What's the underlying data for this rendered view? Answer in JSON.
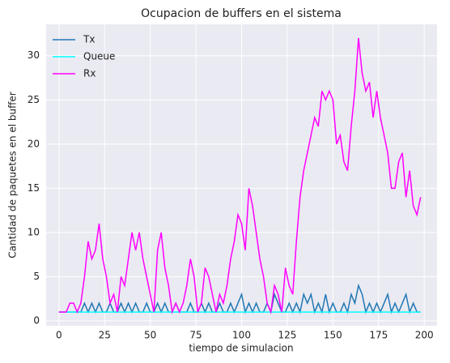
{
  "chart_data": {
    "type": "line",
    "title": "Ocupacion de buffers en el sistema",
    "xlabel": "tiempo de simulacion",
    "ylabel": "Cantidad de paquetes en el buffer",
    "x": [
      0,
      2,
      4,
      6,
      8,
      10,
      12,
      14,
      16,
      18,
      20,
      22,
      24,
      26,
      28,
      30,
      32,
      34,
      36,
      38,
      40,
      42,
      44,
      46,
      48,
      50,
      52,
      54,
      56,
      58,
      60,
      62,
      64,
      66,
      68,
      70,
      72,
      74,
      76,
      78,
      80,
      82,
      84,
      86,
      88,
      90,
      92,
      94,
      96,
      98,
      100,
      102,
      104,
      106,
      108,
      110,
      112,
      114,
      116,
      118,
      120,
      122,
      124,
      126,
      128,
      130,
      132,
      134,
      136,
      138,
      140,
      142,
      144,
      146,
      148,
      150,
      152,
      154,
      156,
      158,
      160,
      162,
      164,
      166,
      168,
      170,
      172,
      174,
      176,
      178,
      180,
      182,
      184,
      186,
      188,
      190,
      192,
      194,
      196,
      198
    ],
    "series": [
      {
        "name": "Tx",
        "color": "#1f77b4",
        "values": [
          1,
          1,
          1,
          1,
          1,
          1,
          1,
          2,
          1,
          2,
          1,
          2,
          1,
          1,
          2,
          1,
          1,
          2,
          1,
          2,
          1,
          2,
          1,
          1,
          2,
          1,
          1,
          2,
          1,
          2,
          1,
          1,
          2,
          1,
          1,
          1,
          2,
          1,
          1,
          2,
          1,
          2,
          1,
          1,
          2,
          1,
          1,
          2,
          1,
          2,
          3,
          1,
          2,
          1,
          2,
          1,
          1,
          2,
          1,
          3,
          2,
          1,
          1,
          2,
          1,
          2,
          1,
          3,
          2,
          3,
          1,
          2,
          1,
          3,
          1,
          2,
          1,
          1,
          2,
          1,
          3,
          2,
          4,
          3,
          1,
          2,
          1,
          2,
          1,
          2,
          3,
          1,
          2,
          1,
          2,
          3,
          1,
          2,
          1,
          1
        ]
      },
      {
        "name": "Queue",
        "color": "#00ffff",
        "values": [
          1,
          1,
          1,
          1,
          1,
          1,
          1,
          1,
          1,
          1,
          1,
          1,
          1,
          1,
          1,
          1,
          1,
          1,
          1,
          1,
          1,
          1,
          1,
          1,
          1,
          1,
          1,
          1,
          1,
          1,
          1,
          1,
          1,
          1,
          1,
          1,
          1,
          1,
          1,
          1,
          1,
          1,
          1,
          1,
          1,
          1,
          1,
          1,
          1,
          1,
          1,
          1,
          1,
          1,
          1,
          1,
          1,
          1,
          1,
          1,
          1,
          1,
          1,
          1,
          1,
          1,
          1,
          1,
          1,
          1,
          1,
          1,
          1,
          1,
          1,
          1,
          1,
          1,
          1,
          1,
          1,
          1,
          1,
          1,
          1,
          1,
          1,
          1,
          1,
          1,
          1,
          1,
          1,
          1,
          1,
          1,
          1,
          1,
          1,
          1
        ]
      },
      {
        "name": "Rx",
        "color": "#ff00ff",
        "values": [
          1,
          1,
          1,
          2,
          2,
          1,
          2,
          5,
          9,
          7,
          8,
          11,
          7,
          5,
          2,
          3,
          1,
          5,
          4,
          7,
          10,
          8,
          10,
          7,
          5,
          3,
          1,
          8,
          10,
          6,
          4,
          1,
          2,
          1,
          2,
          4,
          7,
          5,
          1,
          2,
          6,
          5,
          3,
          1,
          3,
          2,
          4,
          7,
          9,
          12,
          11,
          8,
          15,
          13,
          10,
          7,
          5,
          2,
          1,
          4,
          3,
          1,
          6,
          4,
          3,
          9,
          14,
          17,
          19,
          21,
          23,
          22,
          26,
          25,
          26,
          25,
          20,
          21,
          18,
          17,
          22,
          26,
          32,
          28,
          26,
          27,
          23,
          26,
          23,
          21,
          19,
          15,
          15,
          18,
          19,
          14,
          17,
          13,
          12,
          14
        ]
      }
    ],
    "xlim": [
      -7,
      207
    ],
    "ylim": [
      -0.55,
      33.55
    ],
    "xticks": [
      0,
      25,
      50,
      75,
      100,
      125,
      150,
      175,
      200
    ],
    "yticks": [
      0,
      5,
      10,
      15,
      20,
      25,
      30
    ],
    "grid": true,
    "legend": "upper left"
  }
}
